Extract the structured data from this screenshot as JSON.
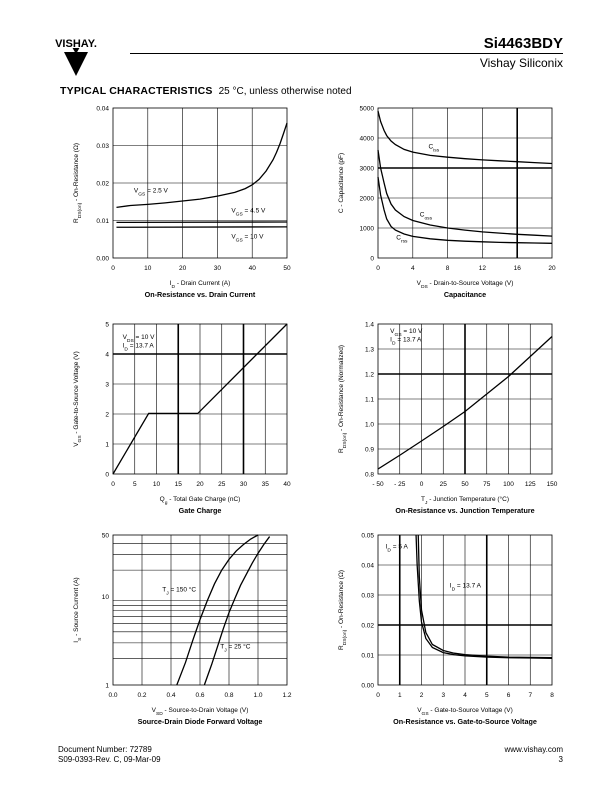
{
  "header": {
    "logo_text": "VISHAY.",
    "part_number": "Si4463BDY",
    "company": "Vishay Siliconix"
  },
  "section": {
    "title": "TYPICAL CHARACTERISTICS",
    "note": "25 °C, unless otherwise noted"
  },
  "footer": {
    "doc_number": "Document Number: 72789",
    "revision": "S09-0393-Rev. C, 09-Mar-09",
    "website": "www.vishay.com",
    "page": "3"
  },
  "chart_data": [
    {
      "id": "c1",
      "type": "line",
      "caption": "On-Resistance vs. Drain Current",
      "xlabel": "I_D - Drain Current (A)",
      "ylabel": "R_DS(on) - On-Resistance (Ω)",
      "xlim": [
        0,
        50
      ],
      "ylim": [
        0,
        0.04
      ],
      "xticks": [
        0,
        10,
        20,
        30,
        40,
        50
      ],
      "yticks": [
        0,
        0.01,
        0.02,
        0.03,
        0.04
      ],
      "xtick_labels": [
        "0",
        "10",
        "20",
        "30",
        "40",
        "50"
      ],
      "ytick_labels": [
        "0.00",
        "0.01",
        "0.02",
        "0.03",
        "0.04"
      ],
      "grid_x": [
        10,
        20,
        30,
        40
      ],
      "grid_y": [
        0.01,
        0.02,
        0.03
      ],
      "bold_x": [],
      "bold_y": [],
      "series": [
        {
          "x": [
            1,
            5,
            10,
            15,
            20,
            25,
            30,
            35,
            38,
            40,
            42,
            44,
            46,
            47,
            48,
            49,
            50
          ],
          "y": [
            0.0135,
            0.014,
            0.0143,
            0.0147,
            0.0152,
            0.0157,
            0.0165,
            0.0175,
            0.0185,
            0.0195,
            0.021,
            0.0232,
            0.0262,
            0.0282,
            0.0305,
            0.0332,
            0.036
          ]
        },
        {
          "x": [
            1,
            50
          ],
          "y": [
            0.0095,
            0.0096
          ]
        },
        {
          "x": [
            1,
            50
          ],
          "y": [
            0.0082,
            0.0083
          ]
        }
      ],
      "annotations": [
        {
          "text": "V_GS = 2.5 V",
          "x": 6,
          "y": 0.0175
        },
        {
          "text": "V_GS = 4.5 V",
          "x": 34,
          "y": 0.0122
        },
        {
          "text": "V_GS = 10 V",
          "x": 34,
          "y": 0.0052
        }
      ]
    },
    {
      "id": "c2",
      "type": "line",
      "caption": "Capacitance",
      "xlabel": "V_DS - Drain-to-Source Voltage (V)",
      "ylabel": "C - Capacitance (pF)",
      "xlim": [
        0,
        20
      ],
      "ylim": [
        0,
        5000
      ],
      "xticks": [
        0,
        4,
        8,
        12,
        16,
        20
      ],
      "yticks": [
        0,
        1000,
        2000,
        3000,
        4000,
        5000
      ],
      "xtick_labels": [
        "0",
        "4",
        "8",
        "12",
        "16",
        "20"
      ],
      "ytick_labels": [
        "0",
        "1000",
        "2000",
        "3000",
        "4000",
        "5000"
      ],
      "grid_x": [
        4,
        8,
        12,
        16
      ],
      "grid_y": [
        1000,
        2000,
        3000,
        4000
      ],
      "bold_x": [
        16
      ],
      "bold_y": [
        3000
      ],
      "series": [
        {
          "x": [
            0,
            0.3,
            0.7,
            1,
            1.5,
            2,
            3,
            4,
            6,
            8,
            10,
            12,
            14,
            16,
            18,
            20
          ],
          "y": [
            4900,
            4550,
            4250,
            4080,
            3900,
            3780,
            3620,
            3530,
            3420,
            3360,
            3310,
            3270,
            3240,
            3210,
            3180,
            3150
          ]
        },
        {
          "x": [
            0,
            0.3,
            0.7,
            1,
            1.5,
            2,
            3,
            4,
            6,
            8,
            10,
            12,
            14,
            16,
            18,
            20
          ],
          "y": [
            3600,
            3000,
            2500,
            2150,
            1800,
            1600,
            1380,
            1250,
            1100,
            1000,
            930,
            870,
            830,
            790,
            760,
            730
          ]
        },
        {
          "x": [
            0,
            0.3,
            0.7,
            1,
            1.5,
            2,
            3,
            4,
            6,
            8,
            10,
            12,
            14,
            16,
            18,
            20
          ],
          "y": [
            2700,
            2100,
            1600,
            1300,
            1050,
            930,
            800,
            720,
            640,
            590,
            560,
            540,
            520,
            510,
            500,
            490
          ]
        }
      ],
      "annotations": [
        {
          "text": "C_iss",
          "x": 5.8,
          "y": 3650
        },
        {
          "text": "C_oss",
          "x": 4.8,
          "y": 1380
        },
        {
          "text": "C_rss",
          "x": 2.1,
          "y": 620
        }
      ]
    },
    {
      "id": "c3",
      "type": "line",
      "caption": "Gate Charge",
      "xlabel": "Q_g - Total Gate Charge (nC)",
      "ylabel": "V_GS - Gate-to-Source Voltage (V)",
      "xlim": [
        0,
        40
      ],
      "ylim": [
        0,
        5
      ],
      "xticks": [
        0,
        5,
        10,
        15,
        20,
        25,
        30,
        35,
        40
      ],
      "yticks": [
        0,
        1,
        2,
        3,
        4,
        5
      ],
      "xtick_labels": [
        "0",
        "5",
        "10",
        "15",
        "20",
        "25",
        "30",
        "35",
        "40"
      ],
      "ytick_labels": [
        "0",
        "1",
        "2",
        "3",
        "4",
        "5"
      ],
      "grid_x": [
        5,
        10,
        15,
        20,
        25,
        30,
        35
      ],
      "grid_y": [
        1,
        2,
        3,
        4
      ],
      "bold_x": [
        15,
        30
      ],
      "bold_y": [
        4
      ],
      "series": [
        {
          "x": [
            0,
            8.2,
            19.5,
            40
          ],
          "y": [
            0,
            2.02,
            2.02,
            5
          ]
        }
      ],
      "annotations": [
        {
          "text": "V_DS = 10 V",
          "x": 2.2,
          "y": 4.5
        },
        {
          "text": "I_D = 13.7 A",
          "x": 2.2,
          "y": 4.22
        }
      ]
    },
    {
      "id": "c4",
      "type": "line",
      "caption": "On-Resistance vs. Junction Temperature",
      "xlabel": "T_J - Junction Temperature (°C)",
      "ylabel": "R_DS(on) - On-Resistance (Normalized)",
      "xlim": [
        -50,
        150
      ],
      "ylim": [
        0.8,
        1.4
      ],
      "xticks": [
        -50,
        -25,
        0,
        25,
        50,
        75,
        100,
        125,
        150
      ],
      "yticks": [
        0.8,
        0.9,
        1.0,
        1.1,
        1.2,
        1.3,
        1.4
      ],
      "xtick_labels": [
        "- 50",
        "- 25",
        "0",
        "25",
        "50",
        "75",
        "100",
        "125",
        "150"
      ],
      "ytick_labels": [
        "0.8",
        "0.9",
        "1.0",
        "1.1",
        "1.2",
        "1.3",
        "1.4"
      ],
      "grid_x": [
        -25,
        0,
        25,
        50,
        75,
        100,
        125
      ],
      "grid_y": [
        0.9,
        1.0,
        1.1,
        1.2,
        1.3
      ],
      "bold_x": [
        50
      ],
      "bold_y": [
        1.2
      ],
      "series": [
        {
          "x": [
            -50,
            -25,
            0,
            25,
            50,
            75,
            100,
            125,
            150
          ],
          "y": [
            0.82,
            0.875,
            0.932,
            0.99,
            1.05,
            1.12,
            1.19,
            1.27,
            1.35
          ]
        }
      ],
      "annotations": [
        {
          "text": "V_GS = 10 V",
          "x": -36,
          "y": 1.365
        },
        {
          "text": "I_D = 13.7 A",
          "x": -36,
          "y": 1.33
        }
      ]
    },
    {
      "id": "c5",
      "type": "line",
      "caption": "Source-Drain Diode Forward Voltage",
      "xlabel": "V_SD - Source-to-Drain Voltage (V)",
      "ylabel": "I_S - Source Current (A)",
      "ylog": true,
      "xlim": [
        0,
        1.2
      ],
      "ylim": [
        1,
        50
      ],
      "xticks": [
        0,
        0.2,
        0.4,
        0.6,
        0.8,
        1.0,
        1.2
      ],
      "yticks": [
        1,
        10,
        50
      ],
      "xtick_labels": [
        "0.0",
        "0.2",
        "0.4",
        "0.6",
        "0.8",
        "1.0",
        "1.2"
      ],
      "ytick_labels": [
        "1",
        "10",
        "50"
      ],
      "grid_x": [
        0.2,
        0.4,
        0.6,
        0.8,
        1.0
      ],
      "grid_y": [
        2,
        3,
        4,
        5,
        6,
        7,
        8,
        9,
        20,
        30,
        40
      ],
      "bold_x": [],
      "bold_y": [
        10
      ],
      "series": [
        {
          "x": [
            0.44,
            0.5,
            0.55,
            0.6,
            0.65,
            0.7,
            0.75,
            0.8,
            0.85,
            0.9,
            0.95,
            1.0
          ],
          "y": [
            1,
            1.8,
            3.2,
            5.5,
            9,
            14,
            20,
            26.5,
            33,
            39,
            45,
            50
          ]
        },
        {
          "x": [
            0.63,
            0.68,
            0.72,
            0.76,
            0.8,
            0.84,
            0.88,
            0.92,
            0.96,
            1.0,
            1.04,
            1.08
          ],
          "y": [
            1,
            1.7,
            2.7,
            4.3,
            6.6,
            9.5,
            13.5,
            18,
            24,
            31,
            39,
            48
          ]
        }
      ],
      "annotations": [
        {
          "text": "T_J = 150 °C",
          "x": 0.34,
          "y": 11.5
        },
        {
          "text": "T_J = 25 °C",
          "x": 0.74,
          "y": 2.6
        }
      ]
    },
    {
      "id": "c6",
      "type": "line",
      "caption": "On-Resistance vs. Gate-to-Source Voltage",
      "xlabel": "V_GS - Gate-to-Source Voltage (V)",
      "ylabel": "R_DS(on) - On-Resistance (Ω)",
      "xlim": [
        0,
        8
      ],
      "ylim": [
        0,
        0.05
      ],
      "xticks": [
        0,
        1,
        2,
        3,
        4,
        5,
        6,
        7,
        8
      ],
      "yticks": [
        0,
        0.01,
        0.02,
        0.03,
        0.04,
        0.05
      ],
      "xtick_labels": [
        "0",
        "1",
        "2",
        "3",
        "4",
        "5",
        "6",
        "7",
        "8"
      ],
      "ytick_labels": [
        "0.00",
        "0.01",
        "0.02",
        "0.03",
        "0.04",
        "0.05"
      ],
      "grid_x": [
        1,
        2,
        3,
        4,
        5,
        6,
        7
      ],
      "grid_y": [
        0.01,
        0.02,
        0.03,
        0.04
      ],
      "bold_x": [
        1,
        5
      ],
      "bold_y": [
        0.02
      ],
      "series": [
        {
          "x": [
            1.85,
            1.9,
            2.0,
            2.2,
            2.5,
            3,
            3.5,
            4,
            5,
            6,
            7,
            8
          ],
          "y": [
            0.05,
            0.036,
            0.025,
            0.0175,
            0.0135,
            0.0115,
            0.0106,
            0.0101,
            0.0096,
            0.0093,
            0.0092,
            0.0091
          ]
        },
        {
          "x": [
            1.75,
            1.8,
            1.9,
            2.0,
            2.2,
            2.5,
            3,
            3.5,
            4,
            5,
            6,
            7,
            8
          ],
          "y": [
            0.05,
            0.04,
            0.028,
            0.021,
            0.0155,
            0.0125,
            0.0108,
            0.0101,
            0.0097,
            0.0093,
            0.0091,
            0.009,
            0.0089
          ]
        }
      ],
      "annotations": [
        {
          "text": "I_D = 5 A",
          "x": 0.35,
          "y": 0.0455
        },
        {
          "text": "I_D = 13.7 A",
          "x": 3.3,
          "y": 0.0325
        }
      ]
    }
  ]
}
